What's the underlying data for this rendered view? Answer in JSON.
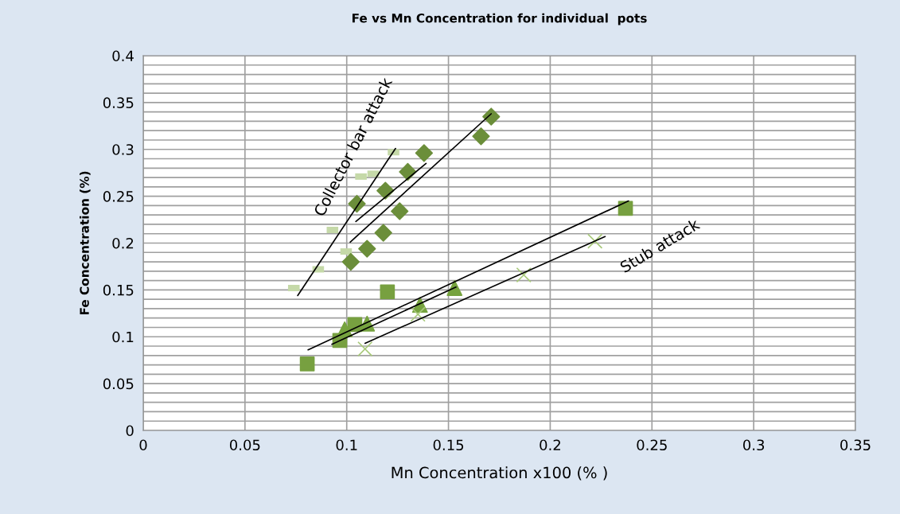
{
  "chart_data": {
    "type": "scatter",
    "title": "Fe vs Mn Concentration for individual  pots",
    "xlabel": "Mn Concentration x100 (% )",
    "ylabel": "Fe Concentration (%)",
    "series": [
      {
        "color": "#c5d9a8",
        "x": [
          0.074,
          0.086,
          0.093,
          0.0997,
          0.107,
          0.113,
          0.123
        ],
        "values": [
          0.152,
          0.172,
          0.214,
          0.191,
          0.271,
          0.274,
          0.297
        ]
      },
      {
        "marker": "diamond",
        "color": "#6b8e3a",
        "x": [
          0.171,
          0.166,
          0.138,
          0.13,
          0.119,
          0.105,
          0.126,
          0.118,
          0.11,
          0.102
        ],
        "values": [
          0.335,
          0.314,
          0.296,
          0.276,
          0.256,
          0.242,
          0.234,
          0.211,
          0.194,
          0.18
        ]
      },
      {
        "marker": "square",
        "color": "#77a040",
        "x": [
          0.12,
          0.0966,
          0.0806,
          0.104,
          0.237
        ],
        "values": [
          0.148,
          0.096,
          0.071,
          0.113,
          0.237
        ]
      },
      {
        "marker": "triangle",
        "color": "#76a33f",
        "x": [
          0.153,
          0.136,
          0.11,
          0.099
        ],
        "values": [
          0.152,
          0.134,
          0.114,
          0.108
        ]
      },
      {
        "marker": "cross",
        "color": "#a8c97a",
        "x": [
          0.109,
          0.135,
          0.187,
          0.222
        ],
        "values": [
          0.087,
          0.124,
          0.166,
          0.202
        ]
      },
      {
        "type": "line",
        "color": "#000000",
        "x": [
          0.0759,
          0.124
        ],
        "values": [
          0.144,
          0.301
        ]
      },
      {
        "type": "line",
        "color": "#000000",
        "x": [
          0.1045,
          0.139
        ],
        "values": [
          0.223,
          0.285
        ]
      },
      {
        "type": "line",
        "color": "#000000",
        "x": [
          0.1017,
          0.171
        ],
        "values": [
          0.201,
          0.338
        ]
      },
      {
        "type": "line",
        "color": "#000000",
        "x": [
          0.081,
          0.2385
        ],
        "values": [
          0.086,
          0.245
        ]
      },
      {
        "type": "line",
        "color": "#000000",
        "x": [
          0.0927,
          0.1537
        ],
        "values": [
          0.092,
          0.153
        ]
      },
      {
        "type": "line",
        "color": "#000000",
        "x": [
          0.109,
          0.227
        ],
        "values": [
          0.093,
          0.207
        ]
      }
    ],
    "annotations": [
      "Collector bar attack",
      "Stub attack"
    ],
    "xlim": [
      0,
      0.35
    ],
    "xticks": [
      0,
      0.05,
      0.1,
      0.15,
      0.2,
      0.25,
      0.3,
      0.35
    ],
    "ylim": [
      0,
      0.4
    ],
    "yticks": [
      0,
      {
        "value": 0.01,
        "label": null
      },
      {
        "value": 0.02,
        "label": null
      },
      {
        "value": 0.03,
        "label": null
      },
      {
        "value": 0.04,
        "label": null
      },
      0.05,
      {
        "value": 0.06,
        "label": null
      },
      {
        "value": 0.07,
        "label": null
      },
      {
        "value": 0.08,
        "label": null
      },
      {
        "value": 0.09,
        "label": null
      },
      0.1,
      {
        "value": 0.11,
        "label": null
      },
      {
        "value": 0.12,
        "label": null
      },
      {
        "value": 0.13,
        "label": null
      },
      {
        "value": 0.14,
        "label": null
      },
      0.15,
      {
        "value": 0.16,
        "label": null
      },
      {
        "value": 0.17,
        "label": null
      },
      {
        "value": 0.18,
        "label": null
      },
      {
        "value": 0.19,
        "label": null
      },
      0.2,
      {
        "value": 0.21,
        "label": null
      },
      {
        "value": 0.22,
        "label": null
      },
      {
        "value": 0.23,
        "label": null
      },
      {
        "value": 0.24,
        "label": null
      },
      0.25,
      {
        "value": 0.26,
        "label": null
      },
      {
        "value": 0.27,
        "label": null
      },
      {
        "value": 0.28,
        "label": null
      },
      {
        "value": 0.29,
        "label": null
      },
      0.3,
      {
        "value": 0.31,
        "label": null
      },
      {
        "value": 0.32,
        "label": null
      },
      {
        "value": 0.33,
        "label": null
      },
      {
        "value": 0.34,
        "label": null
      },
      0.35,
      {
        "value": 0.36,
        "label": null
      },
      {
        "value": 0.37,
        "label": null
      },
      {
        "value": 0.38,
        "label": null
      },
      {
        "value": 0.39,
        "label": null
      },
      0.4
    ],
    "grid": true,
    "legend": false
  }
}
